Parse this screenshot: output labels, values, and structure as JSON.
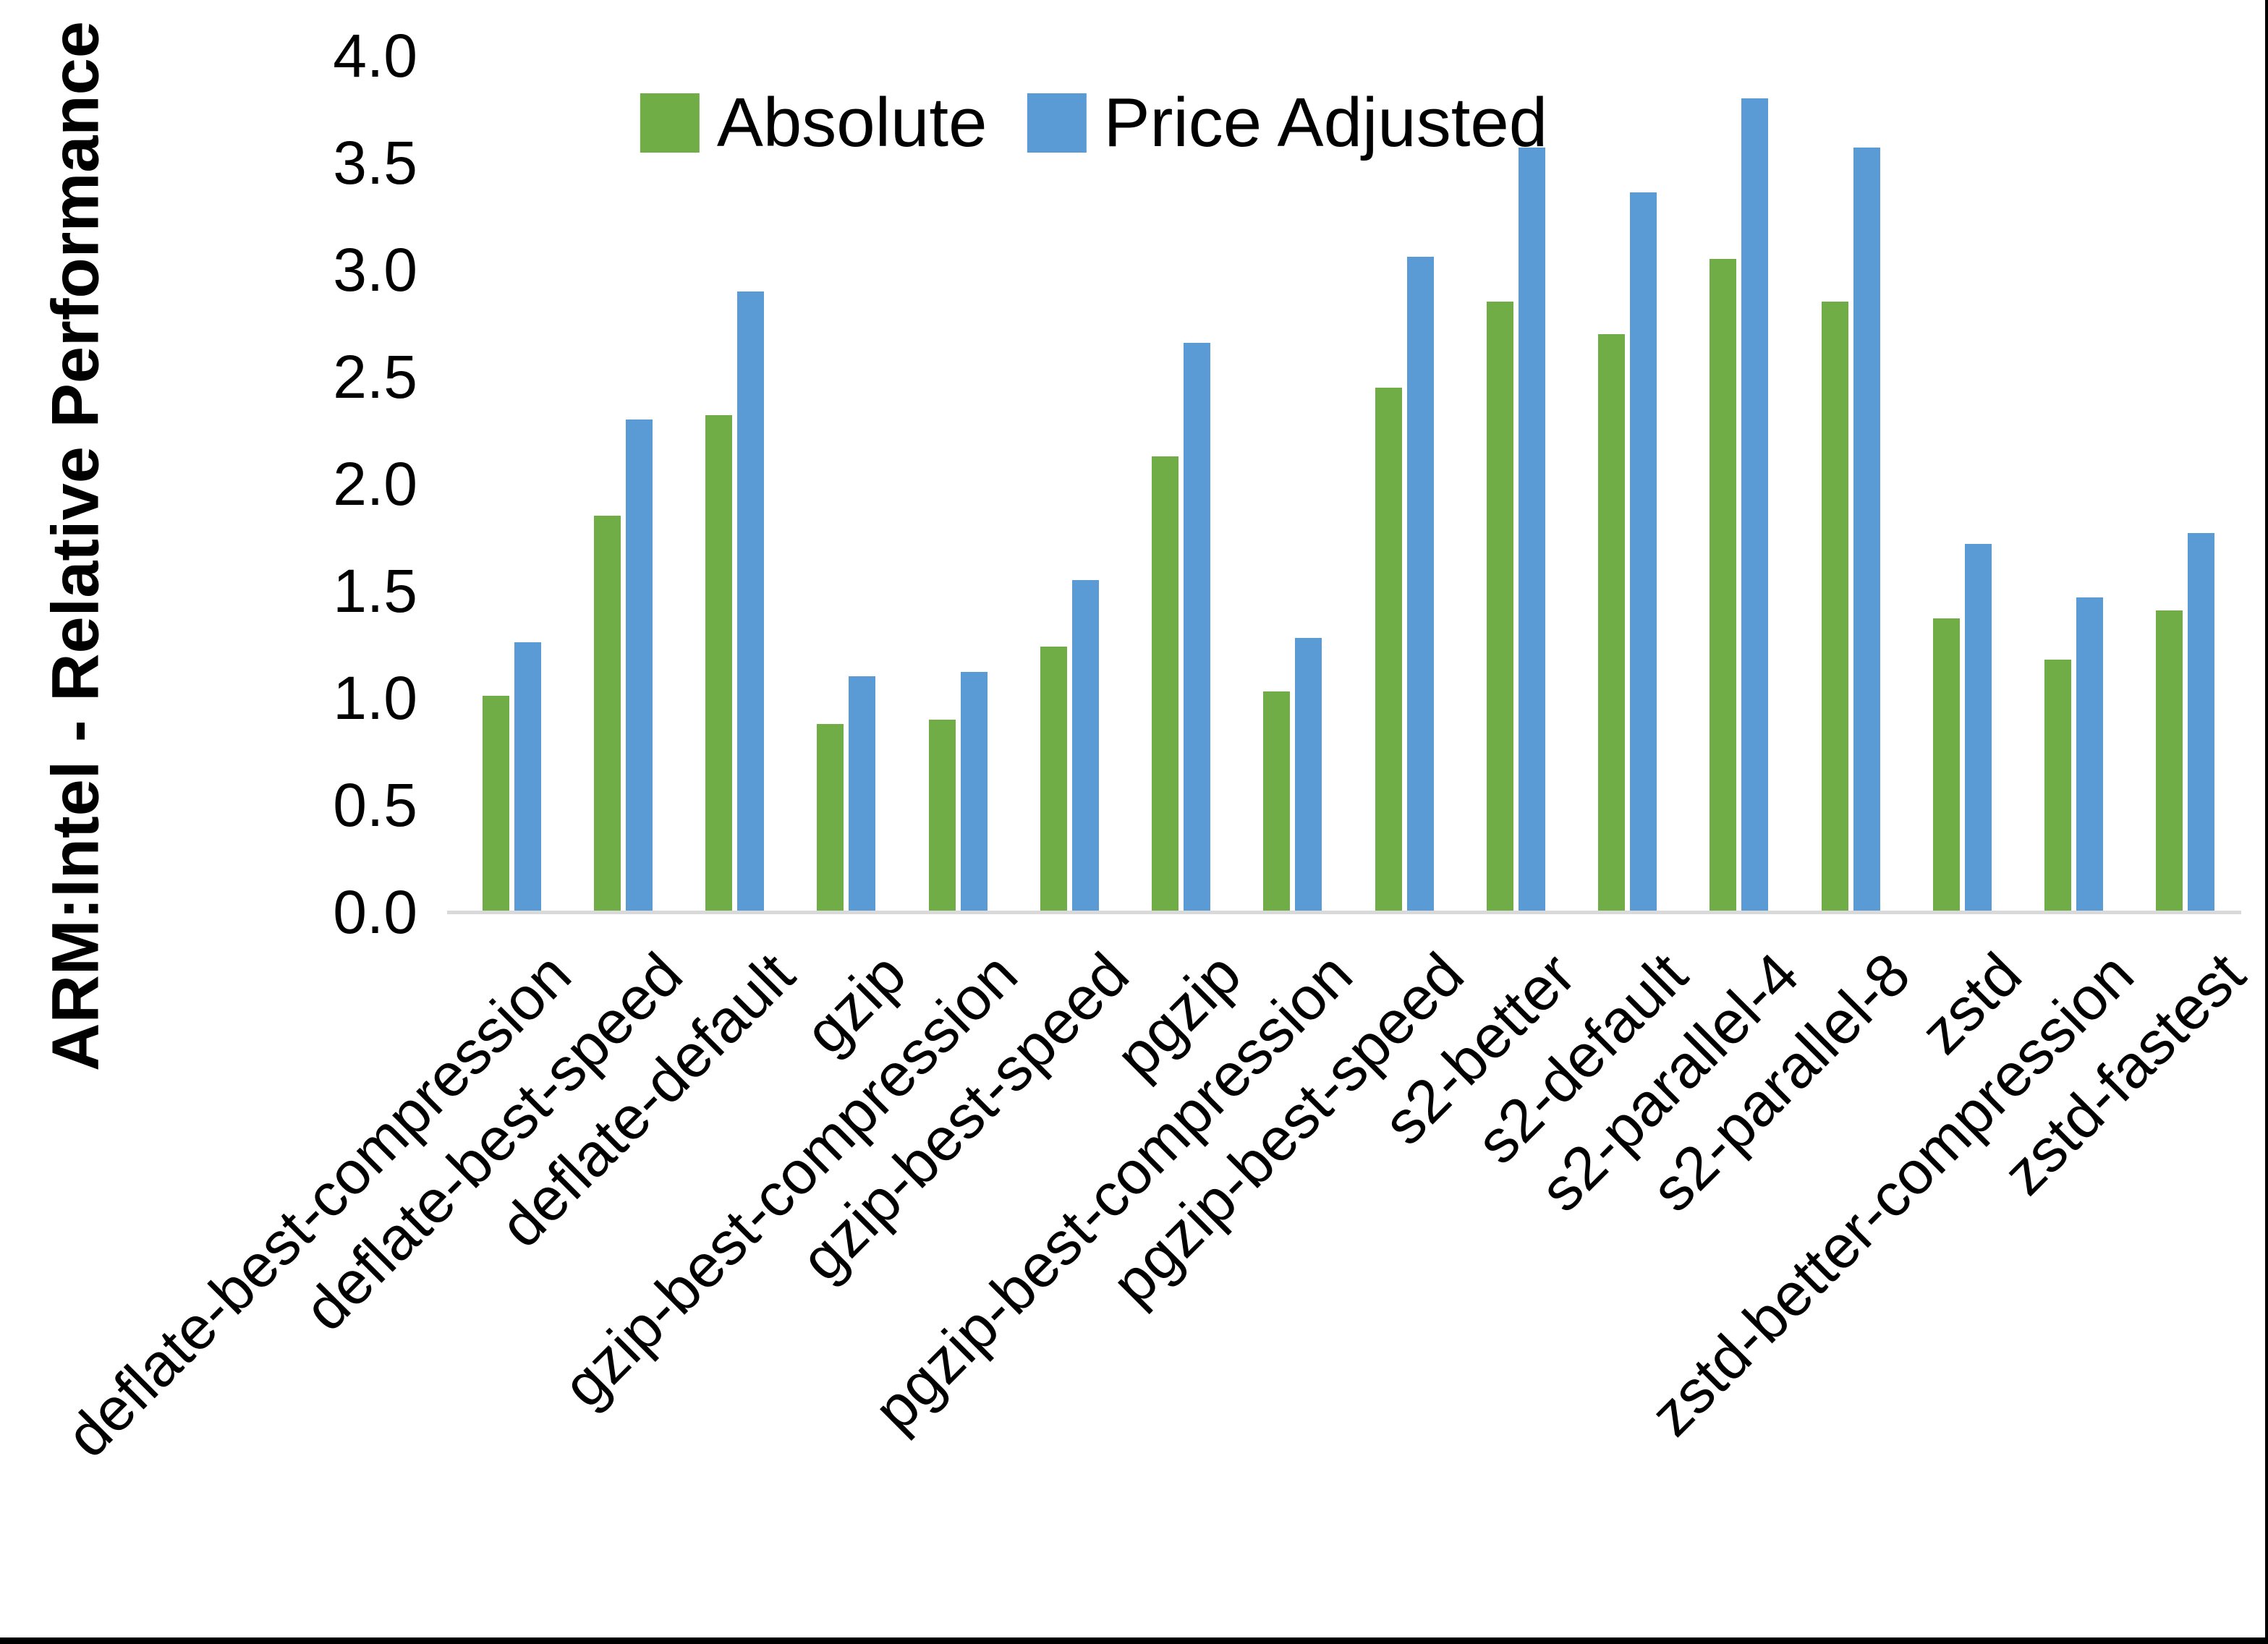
{
  "chart_data": {
    "type": "bar",
    "title": "",
    "xlabel": "",
    "ylabel": "ARM:Intel - Relative Performance",
    "ylim": [
      0.0,
      4.0
    ],
    "ytick_step": 0.5,
    "yticks": [
      "0.0",
      "0.5",
      "1.0",
      "1.5",
      "2.0",
      "2.5",
      "3.0",
      "3.5",
      "4.0"
    ],
    "grid": false,
    "legend_position": "top-center",
    "axis_line_color": "#d9d9d9",
    "categories": [
      "deflate-best-compression",
      "deflate-best-speed",
      "deflate-default",
      "gzip",
      "gzip-best-compression",
      "gzip-best-speed",
      "pgzip",
      "pgzip-best-compression",
      "pgzip-best-speed",
      "s2-better",
      "s2-default",
      "s2-parallel-4",
      "s2-parallel-8",
      "zstd",
      "zstd-better-compression",
      "zstd-fastest"
    ],
    "series": [
      {
        "name": "Absolute",
        "color": "#70ad47",
        "values": [
          1.01,
          1.85,
          2.32,
          0.88,
          0.9,
          1.24,
          2.13,
          1.03,
          2.45,
          2.85,
          2.7,
          3.05,
          2.85,
          1.37,
          1.18,
          1.41
        ]
      },
      {
        "name": "Price Adjusted",
        "color": "#5b9bd5",
        "values": [
          1.26,
          2.3,
          2.9,
          1.1,
          1.12,
          1.55,
          2.66,
          1.28,
          3.06,
          3.57,
          3.36,
          3.8,
          3.57,
          1.72,
          1.47,
          1.77
        ]
      }
    ]
  }
}
